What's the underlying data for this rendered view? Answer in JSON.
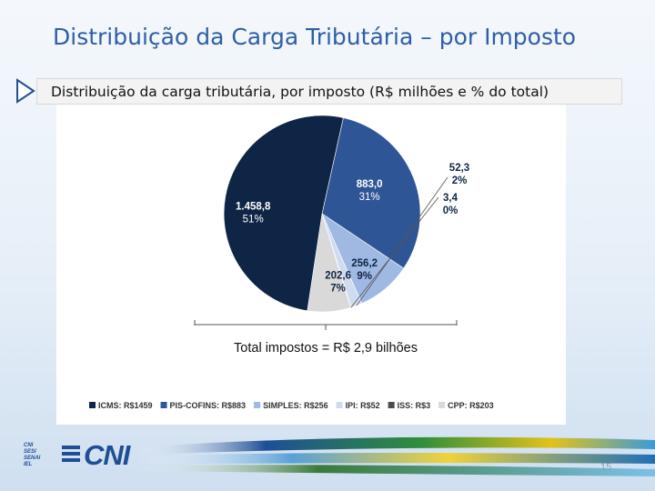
{
  "slide": {
    "title": "Distribuição da Carga Tributária – por Imposto",
    "subtitle": "Distribuição da carga tributária, por imposto (R$ milhões e % do total)",
    "page_number": "15",
    "logo_text": "CNI",
    "small_logo_lines": [
      "CNI",
      "SESI",
      "SENAI",
      "IEL"
    ]
  },
  "chart_data": {
    "type": "pie",
    "title": "",
    "total_label": "Total impostos = R$ 2,9 bilhões",
    "slices": [
      {
        "name": "ICMS: R$1459",
        "value": 1458.8,
        "value_label": "1.458,8",
        "percent_label": "51%",
        "color": "#0f2545",
        "label_color": "#ffffff"
      },
      {
        "name": "PIS-COFINS: R$883",
        "value": 883.0,
        "value_label": "883,0",
        "percent_label": "31%",
        "color": "#2e5596",
        "label_color": "#ffffff"
      },
      {
        "name": "SIMPLES: R$256",
        "value": 256.2,
        "value_label": "256,2",
        "percent_label": "9%",
        "color": "#9fb9e2",
        "label_color": "#0f2545"
      },
      {
        "name": "IPI: R$52",
        "value": 52.3,
        "value_label": "52,3",
        "percent_label": "2%",
        "color": "#cfdcf0",
        "label_color": "#0f2545"
      },
      {
        "name": "ISS: R$3",
        "value": 3.4,
        "value_label": "3,4",
        "percent_label": "0%",
        "color": "#4c4c4c",
        "label_color": "#0f2545"
      },
      {
        "name": "CPP: R$203",
        "value": 202.6,
        "value_label": "202,6",
        "percent_label": "7%",
        "color": "#d9d9d9",
        "label_color": "#0f2545"
      }
    ],
    "legend_position": "bottom",
    "start_angle_deg": 12.5
  }
}
